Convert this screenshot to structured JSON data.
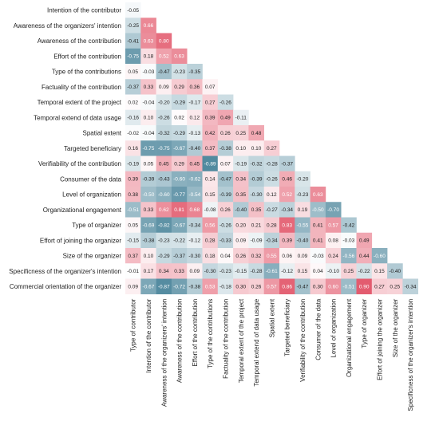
{
  "chart_data": {
    "type": "heatmap",
    "title": "",
    "row_labels": [
      "Intention of the contributor",
      "Awareness of the organizers' intention",
      "Awareness of the contribution",
      "Effort of the contribution",
      "Type of the contributions",
      "Factuality of the contribution",
      "Temporal extent of the project",
      "Temporal extend of data usage",
      "Spatial extent",
      "Targeted beneficiary",
      "Verifiability of the contribution",
      "Consumer of the data",
      "Level of organization",
      "Organizational engagement",
      "Type of organizer",
      "Effort of joining the organizer",
      "Size of the organizer",
      "Specificness of the organizer's intention",
      "Commercial orientation of the organizer"
    ],
    "column_labels": [
      "Type of contributor",
      "Intention of the contributor",
      "Awareness of the organizers' intention",
      "Awareness of the contribution",
      "Effort of the contribution",
      "Type of the contributions",
      "Factuality of the contribution",
      "Temporal extent of the project",
      "Temporal extend of data usage",
      "Spatial extent",
      "Targeted beneficiary",
      "Verifiability of the contribution",
      "Consumer of the data",
      "Level of organization",
      "Organizational engagement",
      "Type of organizer",
      "Effort of joining the organizer",
      "Size of the organizer",
      "Specificness of the organizer's intention"
    ],
    "values": [
      [
        "-0.05"
      ],
      [
        "-0.25",
        "0.66"
      ],
      [
        "-0.41",
        "0.63",
        "0.80"
      ],
      [
        "-0.75",
        "0.18",
        "0.52",
        "0.63"
      ],
      [
        "0.05",
        "-0.03",
        "-0.47",
        "-0.23",
        "-0.35"
      ],
      [
        "-0.37",
        "0.33",
        "0.09",
        "0.29",
        "0.36",
        "0.07"
      ],
      [
        "0.02",
        "-0.04",
        "-0.20",
        "-0.29",
        "-0.17",
        "0.27",
        "-0.26"
      ],
      [
        "-0.16",
        "0.10",
        "-0.26",
        "0.02",
        "0.12",
        "0.39",
        "0.49",
        "-0.11"
      ],
      [
        "-0.02",
        "-0.04",
        "-0.32",
        "-0.29",
        "-0.13",
        "0.42",
        "0.26",
        "0.25",
        "0.48"
      ],
      [
        "0.16",
        "-0.75",
        "-0.75",
        "-0.67",
        "-0.40",
        "0.37",
        "-0.38",
        "0.10",
        "0.10",
        "0.27"
      ],
      [
        "-0.19",
        "0.05",
        "0.45",
        "0.29",
        "0.45",
        "-0.89",
        "0.07",
        "-0.19",
        "-0.32",
        "-0.28",
        "-0.37"
      ],
      [
        "0.39",
        "-0.39",
        "-0.43",
        "-0.60",
        "-0.62",
        "0.14",
        "-0.47",
        "0.34",
        "-0.39",
        "-0.26",
        "0.46",
        "-0.20"
      ],
      [
        "0.38",
        "-0.50",
        "-0.60",
        "-0.77",
        "-0.54",
        "0.15",
        "-0.39",
        "0.35",
        "-0.30",
        "0.12",
        "0.52",
        "-0.23",
        "0.63"
      ],
      [
        "-0.51",
        "0.33",
        "0.62",
        "0.81",
        "0.68",
        "-0.08",
        "0.26",
        "-0.40",
        "0.35",
        "-0.27",
        "-0.34",
        "0.19",
        "-0.50",
        "-0.70"
      ],
      [
        "0.05",
        "-0.69",
        "-0.82",
        "-0.67",
        "-0.34",
        "0.56",
        "-0.26",
        "0.20",
        "0.21",
        "0.28",
        "0.83",
        "-0.55",
        "0.41",
        "0.57",
        "-0.42"
      ],
      [
        "-0.15",
        "-0.38",
        "-0.23",
        "-0.22",
        "-0.12",
        "0.28",
        "-0.33",
        "0.09",
        "-0.09",
        "-0.34",
        "0.39",
        "-0.40",
        "0.41",
        "0.08",
        "-0.03",
        "0.49"
      ],
      [
        "0.37",
        "0.10",
        "-0.29",
        "-0.37",
        "-0.30",
        "0.18",
        "0.04",
        "0.26",
        "0.32",
        "0.55",
        "0.06",
        "0.09",
        "-0.03",
        "0.24",
        "-0.56",
        "0.44",
        "-0.60"
      ],
      [
        "-0.01",
        "0.17",
        "0.34",
        "0.33",
        "0.09",
        "-0.30",
        "-0.23",
        "-0.15",
        "-0.28",
        "-0.61",
        "-0.12",
        "0.15",
        "0.04",
        "-0.10",
        "0.25",
        "-0.22",
        "0.15",
        "-0.40"
      ],
      [
        "0.09",
        "-0.67",
        "-0.87",
        "-0.72",
        "-0.38",
        "0.53",
        "-0.18",
        "0.30",
        "0.26",
        "0.57",
        "0.86",
        "-0.47",
        "0.30",
        "0.60",
        "-0.51",
        "0.90",
        "0.27",
        "0.25",
        "-0.34"
      ]
    ],
    "color_scale": {
      "negative": "#3c7b93",
      "zero": "#ffffff",
      "positive": "#e04a5f",
      "vmin": -1,
      "vmax": 1
    },
    "legend": "none",
    "grid": false
  }
}
